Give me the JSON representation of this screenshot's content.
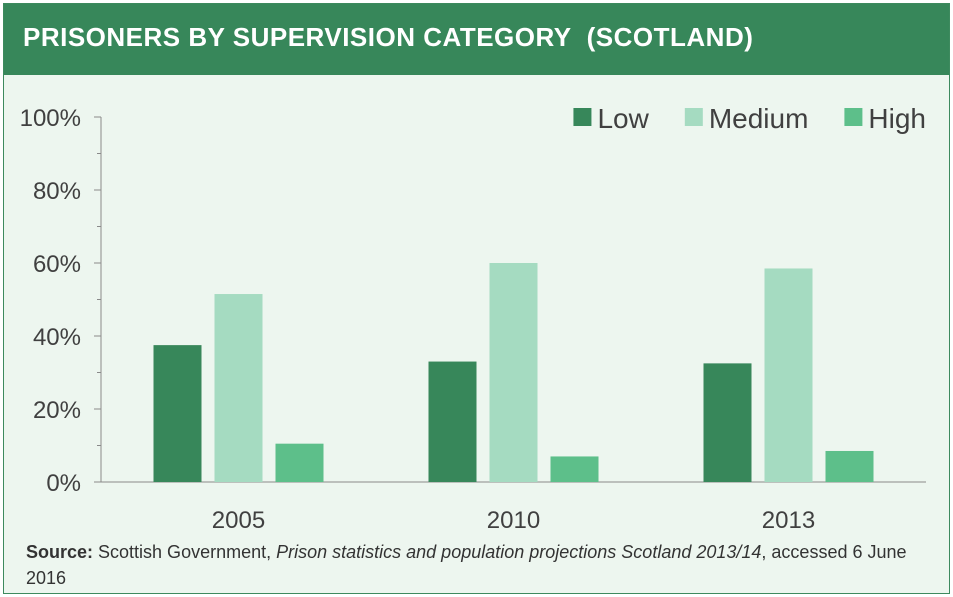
{
  "header": {
    "title": "PRISONERS BY SUPERVISION CATEGORY  (SCOTLAND)"
  },
  "colors": {
    "header_bg": "#37875a",
    "panel_bg": "#edf6ef",
    "low": "#37875a",
    "medium": "#a5dbc1",
    "high": "#5dbf8a"
  },
  "chart_data": {
    "type": "bar",
    "title": "PRISONERS BY SUPERVISION CATEGORY  (SCOTLAND)",
    "categories": [
      "2005",
      "2010",
      "2013"
    ],
    "series": [
      {
        "name": "Low",
        "values": [
          37.5,
          33,
          32.5
        ],
        "color": "#37875a"
      },
      {
        "name": "Medium",
        "values": [
          51.5,
          60,
          58.5
        ],
        "color": "#a5dbc1"
      },
      {
        "name": "High",
        "values": [
          10.5,
          7,
          8.5
        ],
        "color": "#5dbf8a"
      }
    ],
    "ylim": [
      0,
      100
    ],
    "yticks": [
      "0%",
      "20%",
      "40%",
      "60%",
      "80%",
      "100%"
    ],
    "grid": false,
    "legend": "top-right"
  },
  "source": {
    "label": "Source:",
    "publisher": " Scottish Government, ",
    "publication": "Prison statistics and population projections Scotland 2013/14",
    "accessed": ", accessed  6 June 2016"
  }
}
